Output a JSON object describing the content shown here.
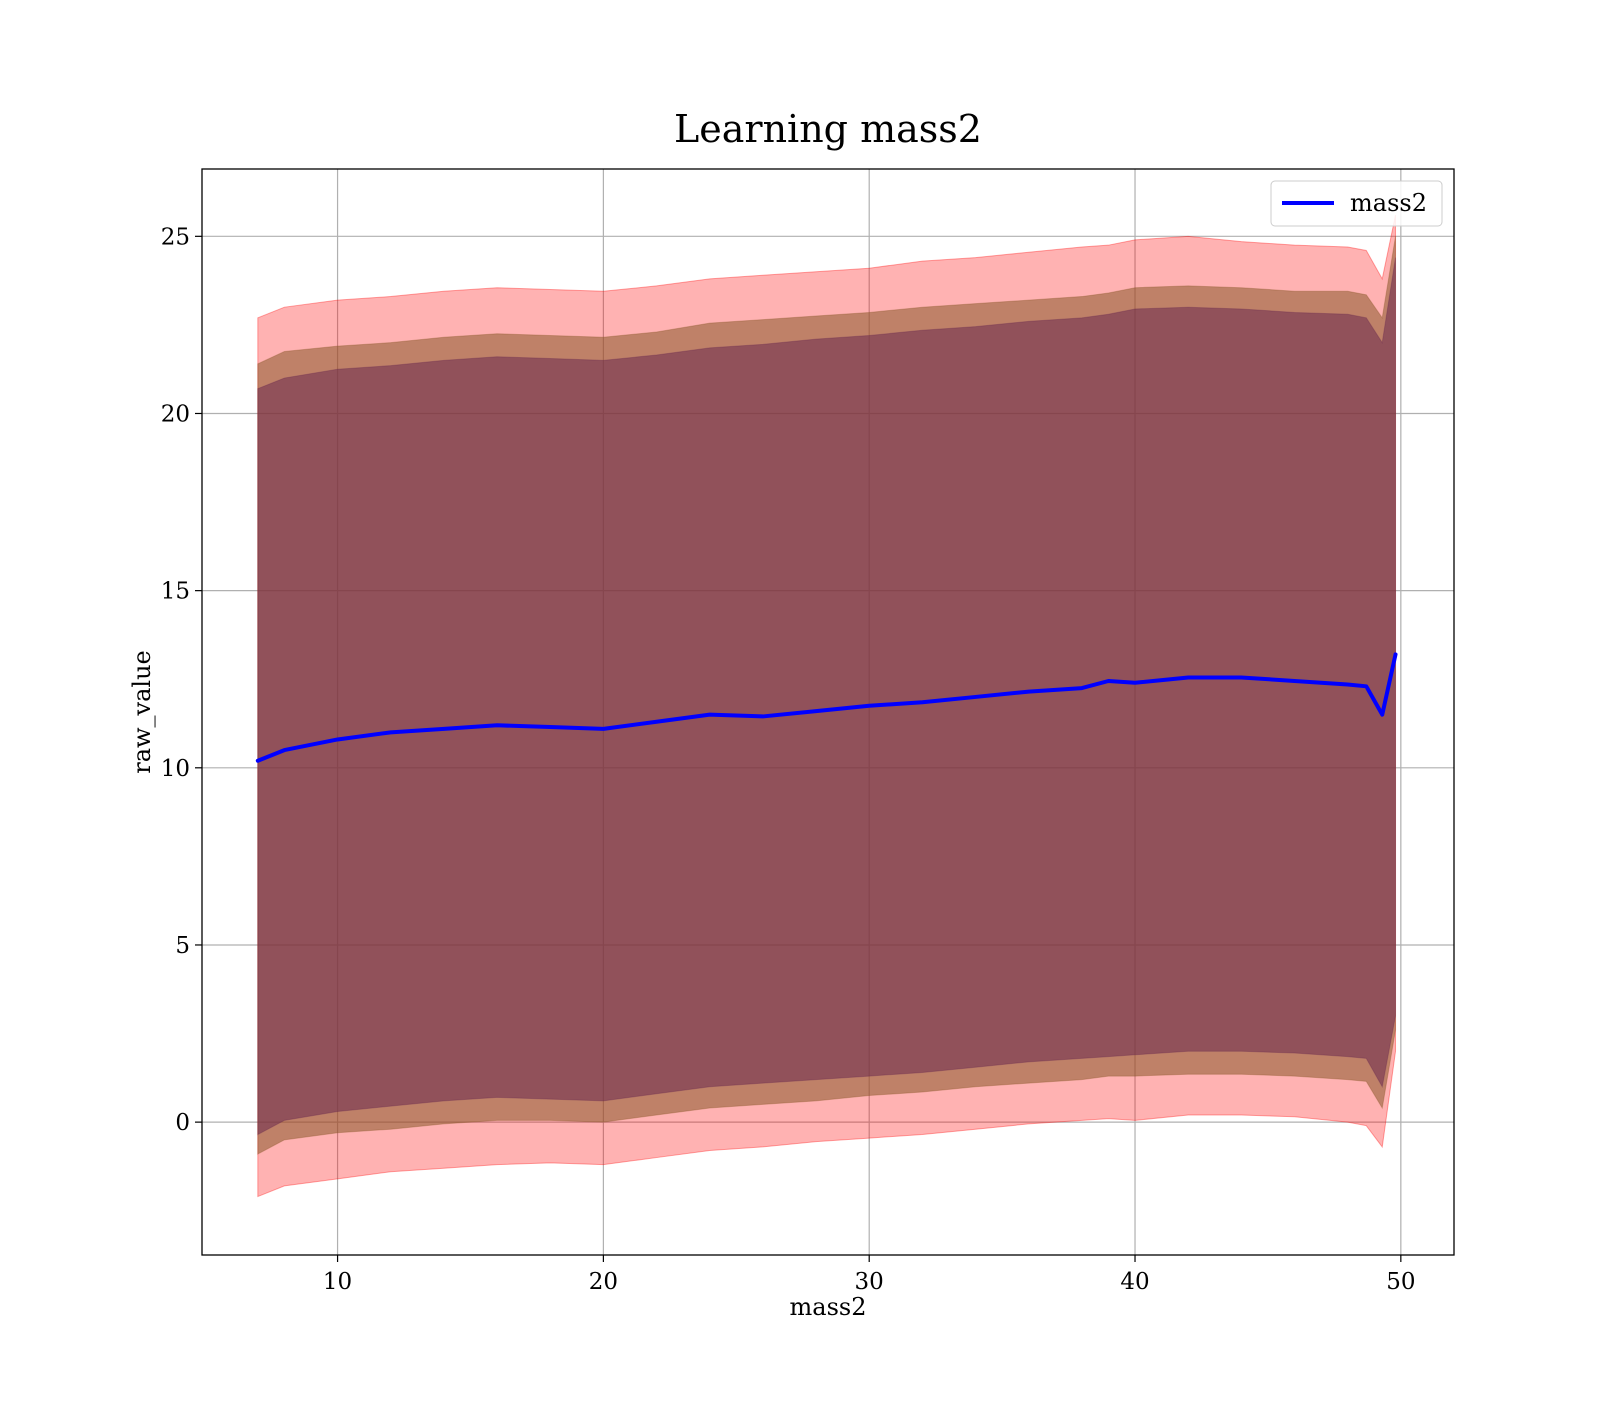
{
  "chart_data": {
    "type": "line",
    "title": "Learning mass2",
    "xlabel": "mass2",
    "ylabel": "raw_value",
    "xlim": [
      4.9,
      52.0
    ],
    "ylim": [
      -3.75,
      26.9
    ],
    "xticks": [
      10,
      20,
      30,
      40,
      50
    ],
    "yticks": [
      0,
      5,
      10,
      15,
      20,
      25
    ],
    "xtick_labels": [
      "10",
      "20",
      "30",
      "40",
      "50"
    ],
    "ytick_labels": [
      "0",
      "5",
      "10",
      "15",
      "20",
      "25"
    ],
    "grid": true,
    "legend": {
      "placement": "top-right",
      "entries": [
        "mass2"
      ]
    },
    "colors": {
      "line": "#0000ff",
      "outer_band": "#ff0000",
      "middle_band": "#8b5a2b",
      "inner_band": "#6b2a4f"
    },
    "x": [
      7,
      8,
      10,
      12,
      14,
      16,
      18,
      20,
      22,
      24,
      26,
      28,
      30,
      32,
      34,
      36,
      38,
      39,
      40,
      42,
      44,
      46,
      48,
      48.7,
      49.3,
      49.8
    ],
    "series": [
      {
        "name": "mass2",
        "values": [
          10.2,
          10.5,
          10.8,
          11.0,
          11.1,
          11.2,
          11.15,
          11.1,
          11.3,
          11.5,
          11.45,
          11.6,
          11.75,
          11.85,
          12.0,
          12.15,
          12.25,
          12.45,
          12.4,
          12.55,
          12.55,
          12.45,
          12.35,
          12.3,
          11.5,
          13.2
        ]
      }
    ],
    "bands": [
      {
        "role": "outer",
        "upper": [
          22.7,
          23.0,
          23.2,
          23.3,
          23.45,
          23.55,
          23.5,
          23.45,
          23.6,
          23.8,
          23.9,
          24.0,
          24.1,
          24.3,
          24.4,
          24.55,
          24.7,
          24.75,
          24.9,
          25.0,
          24.85,
          24.75,
          24.7,
          24.6,
          23.8,
          25.6
        ],
        "lower": [
          -2.1,
          -1.8,
          -1.6,
          -1.4,
          -1.3,
          -1.2,
          -1.15,
          -1.2,
          -1.0,
          -0.8,
          -0.7,
          -0.55,
          -0.45,
          -0.35,
          -0.2,
          -0.05,
          0.05,
          0.1,
          0.05,
          0.2,
          0.2,
          0.15,
          0.0,
          -0.1,
          -0.7,
          2.0
        ]
      },
      {
        "role": "middle",
        "upper": [
          21.4,
          21.75,
          21.9,
          22.0,
          22.15,
          22.25,
          22.2,
          22.15,
          22.3,
          22.55,
          22.65,
          22.75,
          22.85,
          23.0,
          23.1,
          23.2,
          23.3,
          23.4,
          23.55,
          23.6,
          23.55,
          23.45,
          23.45,
          23.35,
          22.7,
          25.0
        ],
        "lower": [
          -0.9,
          -0.5,
          -0.3,
          -0.2,
          -0.05,
          0.05,
          0.05,
          0.0,
          0.2,
          0.4,
          0.5,
          0.6,
          0.75,
          0.85,
          1.0,
          1.1,
          1.2,
          1.3,
          1.3,
          1.35,
          1.35,
          1.3,
          1.2,
          1.15,
          0.4,
          2.6
        ]
      },
      {
        "role": "inner",
        "upper": [
          20.7,
          21.0,
          21.25,
          21.35,
          21.5,
          21.6,
          21.55,
          21.5,
          21.65,
          21.85,
          21.95,
          22.1,
          22.2,
          22.35,
          22.45,
          22.6,
          22.7,
          22.8,
          22.95,
          23.0,
          22.95,
          22.85,
          22.8,
          22.7,
          22.0,
          24.4
        ],
        "lower": [
          -0.35,
          0.05,
          0.3,
          0.45,
          0.6,
          0.7,
          0.65,
          0.6,
          0.8,
          1.0,
          1.1,
          1.2,
          1.3,
          1.4,
          1.55,
          1.7,
          1.8,
          1.85,
          1.9,
          2.0,
          2.0,
          1.95,
          1.85,
          1.8,
          1.0,
          3.0
        ]
      }
    ]
  }
}
